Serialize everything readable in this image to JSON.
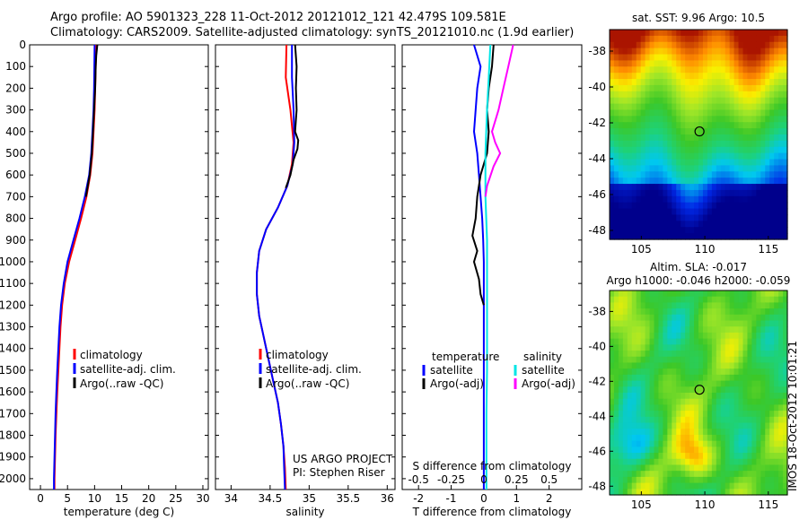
{
  "header": {
    "line1": "Argo profile: AO 5901323_228 11-Oct-2012 20121012_121 42.479S 109.581E",
    "line2": "Climatology: CARS2009. Satellite-adjusted climatology: synTS_20121010.nc (1.9d earlier)"
  },
  "colors": {
    "climatology": "#ff0000",
    "satellite": "#0000ff",
    "argo": "#000000",
    "sal_satellite": "#00e5e5",
    "sal_argo": "#ff00ff"
  },
  "chart_data": [
    {
      "type": "line",
      "name": "temperature-profile",
      "xlabel": "temperature (deg C)",
      "ylabel": "",
      "xlim": [
        -2,
        31
      ],
      "ylim": [
        2050,
        0
      ],
      "xticks": [
        0,
        5,
        10,
        15,
        20,
        25,
        30
      ],
      "yticks": [
        0,
        100,
        200,
        300,
        400,
        500,
        600,
        700,
        800,
        900,
        1000,
        1100,
        1200,
        1300,
        1400,
        1500,
        1600,
        1700,
        1800,
        1900,
        2000
      ],
      "legend": {
        "position": "lower-center",
        "entries": [
          "climatology",
          "satellite-adj. clim.",
          "Argo(..raw -QC)"
        ]
      },
      "series": [
        {
          "name": "climatology",
          "color": "#ff0000",
          "points": [
            [
              10.3,
              0
            ],
            [
              10.2,
              100
            ],
            [
              10.1,
              200
            ],
            [
              10.0,
              300
            ],
            [
              9.8,
              400
            ],
            [
              9.6,
              500
            ],
            [
              9.2,
              600
            ],
            [
              8.5,
              700
            ],
            [
              7.5,
              800
            ],
            [
              6.4,
              900
            ],
            [
              5.3,
              1000
            ],
            [
              4.5,
              1100
            ],
            [
              4.0,
              1200
            ],
            [
              3.7,
              1300
            ],
            [
              3.5,
              1400
            ],
            [
              3.3,
              1500
            ],
            [
              3.1,
              1600
            ],
            [
              2.95,
              1700
            ],
            [
              2.8,
              1800
            ],
            [
              2.7,
              1900
            ],
            [
              2.6,
              2000
            ],
            [
              2.6,
              2050
            ]
          ]
        },
        {
          "name": "satellite-adj. clim.",
          "color": "#0000ff",
          "points": [
            [
              10.0,
              0
            ],
            [
              9.95,
              100
            ],
            [
              9.9,
              200
            ],
            [
              9.8,
              300
            ],
            [
              9.6,
              400
            ],
            [
              9.4,
              500
            ],
            [
              9.0,
              600
            ],
            [
              8.2,
              700
            ],
            [
              7.2,
              800
            ],
            [
              6.1,
              900
            ],
            [
              5.0,
              1000
            ],
            [
              4.3,
              1100
            ],
            [
              3.8,
              1200
            ],
            [
              3.5,
              1300
            ],
            [
              3.3,
              1400
            ],
            [
              3.1,
              1500
            ],
            [
              2.95,
              1600
            ],
            [
              2.8,
              1700
            ],
            [
              2.7,
              1800
            ],
            [
              2.6,
              1900
            ],
            [
              2.5,
              2000
            ],
            [
              2.5,
              2050
            ]
          ]
        },
        {
          "name": "Argo(..raw -QC)",
          "color": "#000000",
          "points": [
            [
              10.5,
              0
            ],
            [
              10.3,
              50
            ],
            [
              10.2,
              100
            ],
            [
              10.1,
              200
            ],
            [
              9.9,
              300
            ],
            [
              9.7,
              400
            ],
            [
              9.5,
              500
            ],
            [
              9.1,
              600
            ],
            [
              8.4,
              700
            ]
          ]
        }
      ]
    },
    {
      "type": "line",
      "name": "salinity-profile",
      "xlabel": "salinity",
      "ylabel": "",
      "xlim": [
        33.8,
        36.1
      ],
      "ylim": [
        2050,
        0
      ],
      "xticks": [
        34,
        34.5,
        35,
        35.5,
        36
      ],
      "legend": {
        "position": "lower-center",
        "entries": [
          "climatology",
          "satellite-adj. clim.",
          "Argo(..raw -QC)"
        ]
      },
      "annotations": [
        "US ARGO PROJECT",
        "PI: Stephen Riser"
      ],
      "series": [
        {
          "name": "climatology",
          "color": "#ff0000",
          "points": [
            [
              34.71,
              0
            ],
            [
              34.7,
              150
            ],
            [
              34.76,
              300
            ],
            [
              34.8,
              450
            ],
            [
              34.78,
              550
            ],
            [
              34.72,
              650
            ],
            [
              34.6,
              750
            ],
            [
              34.45,
              850
            ],
            [
              34.36,
              950
            ],
            [
              34.33,
              1050
            ],
            [
              34.33,
              1150
            ],
            [
              34.36,
              1250
            ],
            [
              34.42,
              1350
            ],
            [
              34.48,
              1450
            ],
            [
              34.54,
              1550
            ],
            [
              34.6,
              1650
            ],
            [
              34.64,
              1750
            ],
            [
              34.67,
              1850
            ],
            [
              34.69,
              1950
            ],
            [
              34.7,
              2050
            ]
          ]
        },
        {
          "name": "satellite-adj. clim.",
          "color": "#0000ff",
          "points": [
            [
              34.78,
              0
            ],
            [
              34.78,
              150
            ],
            [
              34.8,
              300
            ],
            [
              34.81,
              450
            ],
            [
              34.79,
              550
            ],
            [
              34.72,
              650
            ],
            [
              34.6,
              750
            ],
            [
              34.45,
              850
            ],
            [
              34.36,
              950
            ],
            [
              34.33,
              1050
            ],
            [
              34.33,
              1150
            ],
            [
              34.36,
              1250
            ],
            [
              34.42,
              1350
            ],
            [
              34.48,
              1450
            ],
            [
              34.54,
              1550
            ],
            [
              34.6,
              1650
            ],
            [
              34.64,
              1750
            ],
            [
              34.67,
              1850
            ],
            [
              34.68,
              1950
            ],
            [
              34.69,
              2050
            ]
          ]
        },
        {
          "name": "Argo(..raw -QC)",
          "color": "#000000",
          "points": [
            [
              34.82,
              0
            ],
            [
              34.84,
              100
            ],
            [
              34.83,
              200
            ],
            [
              34.84,
              300
            ],
            [
              34.82,
              400
            ],
            [
              34.86,
              440
            ],
            [
              34.85,
              480
            ],
            [
              34.8,
              530
            ],
            [
              34.76,
              600
            ],
            [
              34.7,
              660
            ]
          ]
        }
      ]
    },
    {
      "type": "line",
      "name": "difference-profile",
      "xlabel": "T difference from climatology",
      "xlabel_top": "S difference from climatology",
      "ylabel": "",
      "xlim": [
        -2.5,
        3.0
      ],
      "ylim": [
        2050,
        0
      ],
      "xticks": [
        -2,
        -1,
        0,
        1,
        2
      ],
      "xticks_top": [
        "-0.5",
        "-0.25",
        "0",
        "0.25",
        "0.5"
      ],
      "legend": {
        "position": "lower-center",
        "headers": [
          "temperature",
          "salinity"
        ],
        "entries": [
          "satellite",
          "Argo(-adj)",
          "satellite",
          "Argo(-adj)"
        ]
      },
      "series": [
        {
          "name": "temperature satellite",
          "color": "#0000ff",
          "points": [
            [
              -0.3,
              0
            ],
            [
              -0.1,
              100
            ],
            [
              -0.2,
              200
            ],
            [
              -0.25,
              300
            ],
            [
              -0.3,
              400
            ],
            [
              -0.2,
              500
            ],
            [
              -0.15,
              600
            ],
            [
              -0.1,
              700
            ],
            [
              -0.05,
              800
            ],
            [
              -0.02,
              900
            ],
            [
              0,
              1000
            ],
            [
              0,
              1100
            ],
            [
              0,
              1300
            ],
            [
              0,
              1500
            ],
            [
              0,
              1700
            ],
            [
              0,
              1900
            ],
            [
              0,
              2050
            ]
          ]
        },
        {
          "name": "temperature Argo(-adj)",
          "color": "#000000",
          "points": [
            [
              0.3,
              0
            ],
            [
              0.25,
              100
            ],
            [
              0.15,
              200
            ],
            [
              0.1,
              300
            ],
            [
              0.15,
              400
            ],
            [
              0.1,
              500
            ],
            [
              -0.1,
              600
            ],
            [
              -0.2,
              700
            ],
            [
              -0.25,
              800
            ],
            [
              -0.35,
              880
            ],
            [
              -0.2,
              950
            ],
            [
              -0.3,
              1000
            ],
            [
              -0.15,
              1080
            ],
            [
              -0.1,
              1150
            ],
            [
              0,
              1200
            ]
          ]
        },
        {
          "name": "salinity satellite",
          "color": "#00e5e5",
          "points": [
            [
              0.2,
              0
            ],
            [
              0.15,
              150
            ],
            [
              0.1,
              300
            ],
            [
              0.05,
              500
            ],
            [
              0.05,
              700
            ],
            [
              0.1,
              900
            ],
            [
              0.1,
              1100
            ],
            [
              0.1,
              1300
            ],
            [
              0.1,
              1500
            ],
            [
              0.08,
              1700
            ],
            [
              0.08,
              1900
            ],
            [
              0.08,
              2050
            ]
          ]
        },
        {
          "name": "salinity Argo(-adj)",
          "color": "#ff00ff",
          "points": [
            [
              0.9,
              0
            ],
            [
              0.75,
              100
            ],
            [
              0.6,
              200
            ],
            [
              0.45,
              300
            ],
            [
              0.25,
              400
            ],
            [
              0.35,
              450
            ],
            [
              0.5,
              500
            ],
            [
              0.3,
              560
            ],
            [
              0.1,
              650
            ],
            [
              0.05,
              700
            ]
          ]
        }
      ]
    },
    {
      "type": "heatmap",
      "name": "sst-map",
      "title": "sat. SST: 9.96  Argo: 10.5",
      "xlim": [
        102.5,
        116.5
      ],
      "ylim": [
        -48.5,
        -36.8
      ],
      "xticks": [
        105,
        110,
        115
      ],
      "yticks": [
        -38,
        -40,
        -42,
        -44,
        -46,
        -48
      ],
      "marker": [
        109.581,
        -42.479
      ]
    },
    {
      "type": "heatmap",
      "name": "sla-map",
      "title": "Altim. SLA: -0.017",
      "subtitle": "Argo h1000: -0.046 h2000: -0.059",
      "xlim": [
        102.5,
        116.5
      ],
      "ylim": [
        -48.5,
        -36.8
      ],
      "xticks": [
        105,
        110,
        115
      ],
      "yticks": [
        -38,
        -40,
        -42,
        -44,
        -46,
        -48
      ],
      "marker": [
        109.581,
        -42.479
      ]
    }
  ],
  "credit": "IMOS 18-Oct-2012 10:01:21"
}
